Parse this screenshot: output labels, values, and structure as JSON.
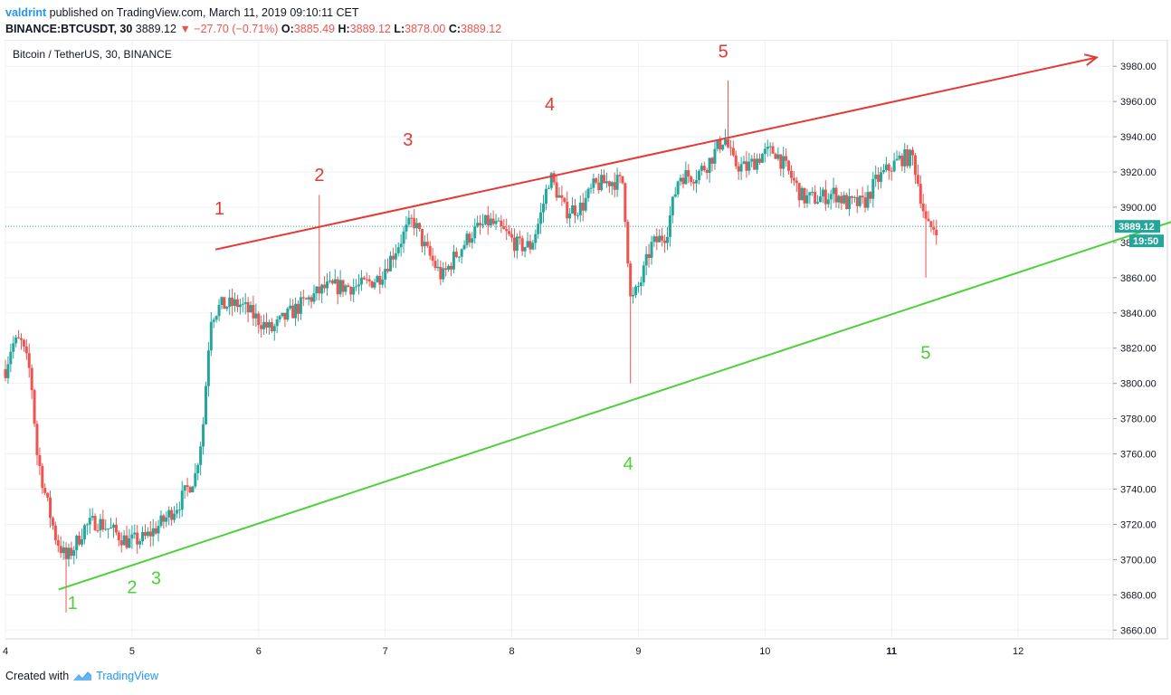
{
  "header": {
    "author": "valdrint",
    "published": "published on TradingView.com, March 11, 2019 09:10:11 CET",
    "symbol": "BINANCE:BTCUSDT, 30",
    "last": "3889.12",
    "change": "▼ −27.70 (−0.71%)",
    "o_label": "O:",
    "o_value": "3885.49",
    "h_label": "H:",
    "h_value": "3889.12",
    "l_label": "L:",
    "l_value": "3878.00",
    "c_label": "C:",
    "c_value": "3889.12"
  },
  "footer": {
    "created": "Created with",
    "brand": "TradingView"
  },
  "colors": {
    "up": "#26a69a",
    "down": "#ef5350",
    "red_line": "#e53935",
    "green_line": "#4cd137",
    "price_badge": "#26a69a"
  },
  "chart_data": {
    "type": "candlestick",
    "title": "Bitcoin / TetherUS, 30, BINANCE",
    "x_ticks": [
      "4",
      "5",
      "6",
      "7",
      "8",
      "9",
      "10",
      "11",
      "12"
    ],
    "y_ticks": [
      "3660.00",
      "3680.00",
      "3700.00",
      "3720.00",
      "3740.00",
      "3760.00",
      "3780.00",
      "3800.00",
      "3820.00",
      "3840.00",
      "3860.00",
      "3880.00",
      "3900.00",
      "3920.00",
      "3940.00",
      "3960.00",
      "3980.00"
    ],
    "ylim": [
      3655,
      3995
    ],
    "xlim": [
      4.0,
      12.75
    ],
    "last_price": "3889.12",
    "countdown": "19:50",
    "grid": true,
    "anchors": [
      [
        4.0,
        3808
      ],
      [
        4.05,
        3822
      ],
      [
        4.12,
        3824
      ],
      [
        4.2,
        3805
      ],
      [
        4.25,
        3760
      ],
      [
        4.32,
        3735
      ],
      [
        4.4,
        3712
      ],
      [
        4.48,
        3700
      ],
      [
        4.55,
        3708
      ],
      [
        4.62,
        3718
      ],
      [
        4.72,
        3722
      ],
      [
        4.85,
        3716
      ],
      [
        4.97,
        3710
      ],
      [
        5.1,
        3712
      ],
      [
        5.25,
        3722
      ],
      [
        5.38,
        3733
      ],
      [
        5.5,
        3748
      ],
      [
        5.56,
        3775
      ],
      [
        5.62,
        3838
      ],
      [
        5.7,
        3844
      ],
      [
        5.85,
        3845
      ],
      [
        6.0,
        3836
      ],
      [
        6.1,
        3830
      ],
      [
        6.22,
        3838
      ],
      [
        6.38,
        3847
      ],
      [
        6.52,
        3854
      ],
      [
        6.65,
        3855
      ],
      [
        6.8,
        3855
      ],
      [
        6.95,
        3860
      ],
      [
        7.05,
        3872
      ],
      [
        7.15,
        3885
      ],
      [
        7.22,
        3893
      ],
      [
        7.32,
        3876
      ],
      [
        7.45,
        3860
      ],
      [
        7.55,
        3872
      ],
      [
        7.68,
        3885
      ],
      [
        7.82,
        3892
      ],
      [
        7.95,
        3885
      ],
      [
        8.05,
        3878
      ],
      [
        8.15,
        3878
      ],
      [
        8.22,
        3893
      ],
      [
        8.3,
        3918
      ],
      [
        8.42,
        3898
      ],
      [
        8.55,
        3900
      ],
      [
        8.65,
        3912
      ],
      [
        8.78,
        3915
      ],
      [
        8.88,
        3914
      ],
      [
        8.94,
        3845
      ],
      [
        9.02,
        3858
      ],
      [
        9.1,
        3878
      ],
      [
        9.22,
        3885
      ],
      [
        9.32,
        3918
      ],
      [
        9.45,
        3918
      ],
      [
        9.55,
        3925
      ],
      [
        9.68,
        3940
      ],
      [
        9.75,
        3925
      ],
      [
        9.85,
        3922
      ],
      [
        9.98,
        3930
      ],
      [
        10.08,
        3932
      ],
      [
        10.2,
        3918
      ],
      [
        10.3,
        3905
      ],
      [
        10.42,
        3905
      ],
      [
        10.55,
        3908
      ],
      [
        10.65,
        3902
      ],
      [
        10.78,
        3902
      ],
      [
        10.88,
        3915
      ],
      [
        10.98,
        3922
      ],
      [
        11.08,
        3928
      ],
      [
        11.17,
        3928
      ],
      [
        11.22,
        3910
      ],
      [
        11.28,
        3888
      ],
      [
        11.36,
        3889
      ]
    ],
    "red_trend": {
      "from": [
        5.66,
        3876
      ],
      "to": [
        12.62,
        3985
      ]
    },
    "green_trend": {
      "from": [
        4.42,
        3683
      ],
      "to": [
        13.52,
        3899
      ]
    },
    "red_labels": [
      {
        "text": "1",
        "x": 5.69,
        "y": 3896
      },
      {
        "text": "2",
        "x": 6.48,
        "y": 3915
      },
      {
        "text": "3",
        "x": 7.18,
        "y": 3935
      },
      {
        "text": "4",
        "x": 8.3,
        "y": 3955
      },
      {
        "text": "5",
        "x": 9.67,
        "y": 3985
      }
    ],
    "green_labels": [
      {
        "text": "1",
        "x": 4.53,
        "y": 3672
      },
      {
        "text": "2",
        "x": 5.0,
        "y": 3681
      },
      {
        "text": "3",
        "x": 5.19,
        "y": 3686
      },
      {
        "text": "4",
        "x": 8.92,
        "y": 3751
      },
      {
        "text": "5",
        "x": 11.27,
        "y": 3814
      }
    ]
  }
}
